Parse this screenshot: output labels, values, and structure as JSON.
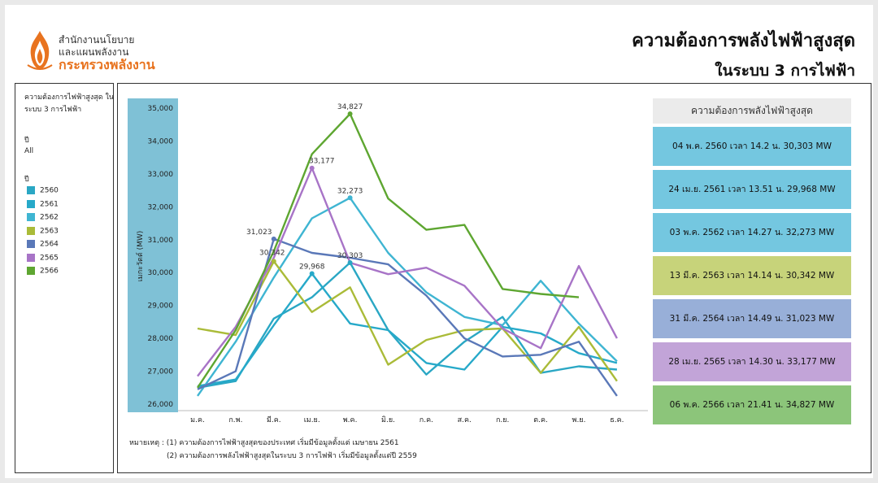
{
  "header": {
    "org_line1": "สำนักงานนโยบาย",
    "org_line2": "และแผนพลังงาน",
    "org_line3": "กระทรวงพลังงาน",
    "title": "ความต้องการพลังไฟฟ้าสูงสุด",
    "subtitle": "ในระบบ 3 การไฟฟ้า"
  },
  "sidebar": {
    "title": "ความต้องการไฟฟ้าสูงสุด ในระบบ 3 การไฟฟ้า",
    "filter_label": "ปี",
    "filter_value": "All",
    "legend_label": "ปี"
  },
  "panel": {
    "header": "ความต้องการพลังไฟฟ้าสูงสุด",
    "cards": [
      {
        "text": "04 พ.ค. 2560 เวลา 14.2 น. 30,303 MW",
        "color": "#74c7e0"
      },
      {
        "text": "24 เม.ย. 2561 เวลา 13.51 น. 29,968 MW",
        "color": "#74c7e0"
      },
      {
        "text": "03 พ.ค. 2562 เวลา 14.27 น. 32,273 MW",
        "color": "#74c7e0"
      },
      {
        "text": "13 มี.ค. 2563 เวลา 14.14 น. 30,342 MW",
        "color": "#c7d37a"
      },
      {
        "text": "31 มี.ค. 2564 เวลา 14.49 น. 31,023 MW",
        "color": "#98afd8"
      },
      {
        "text": "28 เม.ย. 2565 เวลา 14.30 น. 33,177 MW",
        "color": "#c2a4d8"
      },
      {
        "text": "06 พ.ค. 2566 เวลา 21.41 น. 34,827 MW",
        "color": "#8cc57a"
      }
    ]
  },
  "notes": {
    "line1": "หมายเหตุ : (1) ความต้องการไฟฟ้าสูงสุดของประเทศ เริ่มมีข้อมูลตั้งแต่ เมษายน 2561",
    "line2": "(2) ความต้องการพลังไฟฟ้าสูงสุดในระบบ 3 การไฟฟ้า เริ่มมีข้อมูลตั้งแต่ปี 2559"
  },
  "chart_data": {
    "type": "line",
    "title": "",
    "xlabel": "",
    "ylabel": "เมกะวัตต์ (MW)",
    "ylim": [
      26000,
      35000
    ],
    "yticks": [
      26000,
      27000,
      28000,
      29000,
      30000,
      31000,
      32000,
      33000,
      34000,
      35000
    ],
    "ytick_labels": [
      "26,000",
      "27,000",
      "28,000",
      "29,000",
      "30,000",
      "31,000",
      "32,000",
      "33,000",
      "34,000",
      "35,000"
    ],
    "categories": [
      "ม.ค.",
      "ก.พ.",
      "มี.ค.",
      "เม.ย.",
      "พ.ค.",
      "มิ.ย.",
      "ก.ค.",
      "ส.ค.",
      "ก.ย.",
      "ต.ค.",
      "พ.ย.",
      "ธ.ค."
    ],
    "grid": false,
    "legend_position": "left",
    "series": [
      {
        "name": "2560",
        "color": "#2aa7c4",
        "values": [
          26500,
          26700,
          28600,
          29250,
          30303,
          28250,
          26900,
          27900,
          28650,
          26950,
          27150,
          27050
        ]
      },
      {
        "name": "2561",
        "color": "#26a9c9",
        "values": [
          26550,
          26750,
          28400,
          29968,
          28450,
          28250,
          27250,
          27050,
          28350,
          28150,
          27550,
          27250
        ]
      },
      {
        "name": "2562",
        "color": "#3fb5d2",
        "values": [
          26250,
          27900,
          29850,
          31650,
          32273,
          30600,
          29400,
          28650,
          28400,
          29750,
          28450,
          27300
        ]
      },
      {
        "name": "2563",
        "color": "#aabb38",
        "values": [
          28300,
          28100,
          30342,
          28800,
          29550,
          27200,
          27950,
          28250,
          28300,
          26950,
          28350,
          26700
        ]
      },
      {
        "name": "2564",
        "color": "#5a78b8",
        "values": [
          26450,
          27000,
          31023,
          30600,
          30450,
          30250,
          29300,
          28000,
          27450,
          27500,
          27900,
          26250
        ]
      },
      {
        "name": "2565",
        "color": "#a874c7",
        "values": [
          26850,
          28350,
          30450,
          33177,
          30300,
          29950,
          30150,
          29600,
          28300,
          27700,
          30200,
          28000
        ]
      },
      {
        "name": "2566",
        "color": "#5ea631",
        "values": [
          26500,
          28250,
          30650,
          33600,
          34827,
          32250,
          31300,
          31450,
          29500,
          29350,
          29250,
          null
        ]
      }
    ],
    "annotations": [
      {
        "series": "2566",
        "index": 4,
        "label": "34,827"
      },
      {
        "series": "2565",
        "index": 3,
        "label": "33,177"
      },
      {
        "series": "2562",
        "index": 4,
        "label": "32,273"
      },
      {
        "series": "2564",
        "index": 2,
        "label": "31,023"
      },
      {
        "series": "2563",
        "index": 2,
        "label": "30,342"
      },
      {
        "series": "2561",
        "index": 3,
        "label": "29,968"
      },
      {
        "series": "2560",
        "index": 4,
        "label": "30,303"
      }
    ]
  }
}
